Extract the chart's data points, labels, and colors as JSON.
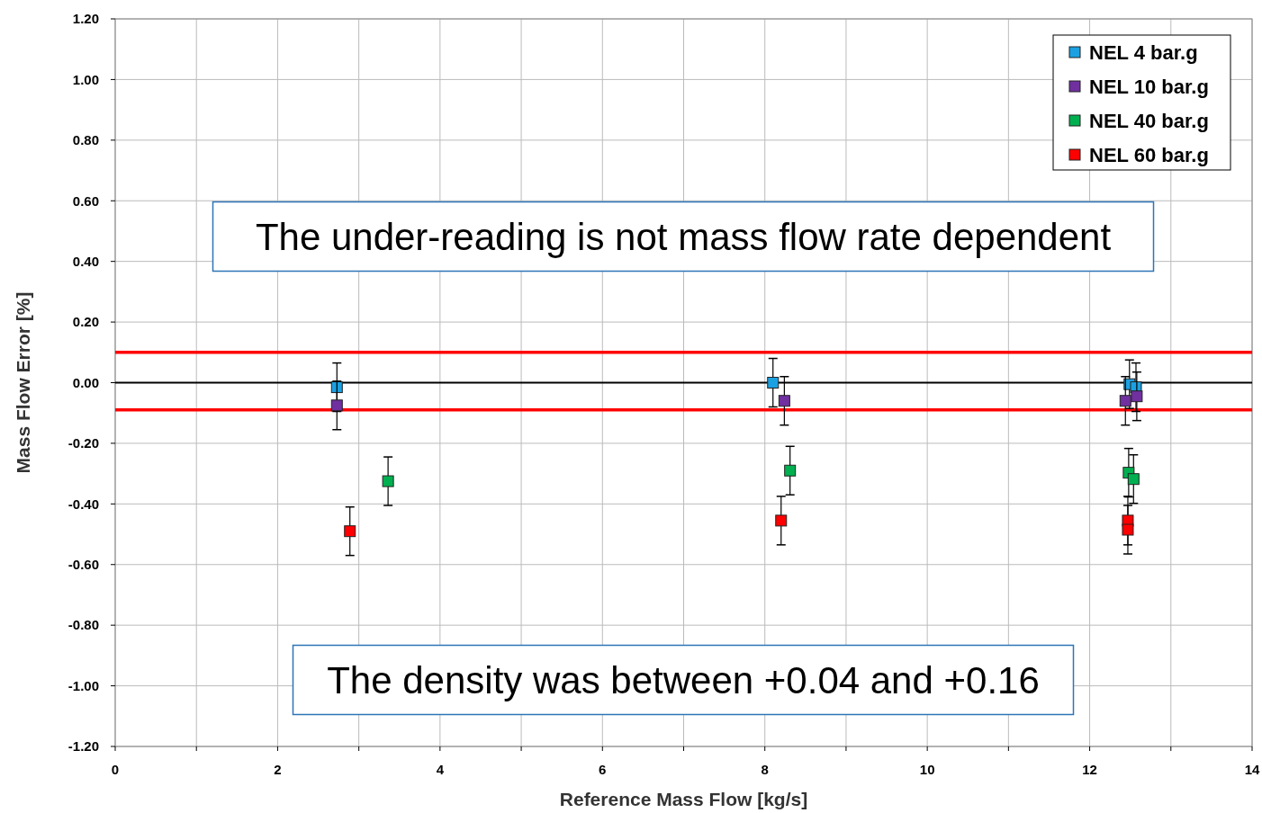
{
  "chart_data": {
    "type": "scatter",
    "xlabel": "Reference Mass Flow [kg/s]",
    "ylabel": "Mass Flow Error [%]",
    "xlim": [
      0,
      14
    ],
    "ylim": [
      -1.2,
      1.2
    ],
    "xticks": [
      0,
      {
        "value": 1,
        "label": null
      },
      2,
      {
        "value": 3,
        "label": null
      },
      4,
      {
        "value": 5,
        "label": null
      },
      6,
      {
        "value": 7,
        "label": null
      },
      8,
      {
        "value": 9,
        "label": null
      },
      10,
      {
        "value": 11,
        "label": null
      },
      12,
      {
        "value": 13,
        "label": null
      },
      14
    ],
    "yticks": [
      {
        "value": -1.2,
        "label": "-1.20"
      },
      {
        "value": -1,
        "label": "-1.00"
      },
      {
        "value": -0.8,
        "label": "-0.80"
      },
      {
        "value": -0.6,
        "label": "-0.60"
      },
      {
        "value": -0.4,
        "label": "-0.40"
      },
      {
        "value": -0.2,
        "label": "-0.20"
      },
      {
        "value": 0,
        "label": "0.00"
      },
      {
        "value": 0.2,
        "label": "0.20"
      },
      {
        "value": 0.4,
        "label": "0.40"
      },
      {
        "value": 0.6,
        "label": "0.60"
      },
      {
        "value": 0.8,
        "label": "0.80"
      },
      {
        "value": 1,
        "label": "1.00"
      },
      {
        "value": 1.2,
        "label": "1.20"
      }
    ],
    "grid": true,
    "legend": "top right",
    "marker": "square",
    "series": [
      {
        "name": "NEL 4 bar.g",
        "color": "#1ba1e2",
        "x": [
          2.73,
          8.1,
          12.49,
          12.57
        ],
        "values": [
          -0.015,
          0,
          -0.005,
          -0.015
        ],
        "errors": [
          0.08,
          0.08,
          0.08,
          0.08
        ]
      },
      {
        "name": "NEL 10 bar.g",
        "color": "#7030a0",
        "x": [
          2.73,
          8.24,
          12.44,
          12.58
        ],
        "values": [
          -0.075,
          -0.06,
          -0.06,
          -0.045
        ],
        "errors": [
          0.08,
          0.08,
          0.08,
          0.08
        ]
      },
      {
        "name": "NEL 40 bar.g",
        "color": "#00b050",
        "x": [
          3.36,
          8.31,
          12.48,
          12.54
        ],
        "values": [
          -0.325,
          -0.29,
          -0.297,
          -0.318
        ],
        "errors": [
          0.08,
          0.08,
          0.08,
          0.08
        ]
      },
      {
        "name": "NEL 60 bar.g",
        "color": "#ff0000",
        "x": [
          2.89,
          8.2,
          12.47,
          12.47
        ],
        "values": [
          -0.49,
          -0.455,
          -0.455,
          -0.485
        ],
        "errors": [
          0.08,
          0.08,
          0.08,
          0.08
        ]
      }
    ],
    "ref_lines": [
      {
        "axis": "y",
        "value": 0.1,
        "color": "#ff0000"
      },
      {
        "axis": "y",
        "value": -0.09,
        "color": "#ff0000"
      },
      {
        "axis": "y",
        "value": 0,
        "color": "#000000"
      }
    ],
    "annotations": [
      "The under-reading is not mass flow rate dependent",
      "The density was between +0.04 and +0.16"
    ]
  }
}
